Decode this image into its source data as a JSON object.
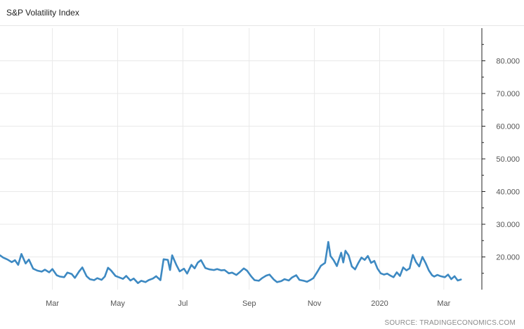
{
  "header": {
    "title": "S&P Volatility Index"
  },
  "footer": {
    "source": "SOURCE: TRADINGECONOMICS.COM"
  },
  "colors": {
    "line": "#3d89c2",
    "grid": "#e9e9e9",
    "axis": "#222222"
  },
  "chart_data": {
    "type": "line",
    "title": "S&P Volatility Index",
    "xlabel": "",
    "ylabel": "",
    "grid": true,
    "y_axis_position": "right",
    "ylim": [
      10,
      90
    ],
    "y_ticks": [
      {
        "value": 20,
        "label": "20.000"
      },
      {
        "value": 30,
        "label": "30.000"
      },
      {
        "value": 40,
        "label": "40.000"
      },
      {
        "value": 50,
        "label": "50.000"
      },
      {
        "value": 60,
        "label": "60.000"
      },
      {
        "value": 70,
        "label": "70.000"
      },
      {
        "value": 80,
        "label": "80.000"
      }
    ],
    "xlim": [
      "2019-01-11",
      "2020-03-30"
    ],
    "x_ticks": [
      {
        "date": "2019-03-01",
        "label": "Mar"
      },
      {
        "date": "2019-05-01",
        "label": "May"
      },
      {
        "date": "2019-07-01",
        "label": "Jul"
      },
      {
        "date": "2019-09-01",
        "label": "Sep"
      },
      {
        "date": "2019-11-01",
        "label": "Nov"
      },
      {
        "date": "2020-01-01",
        "label": "2020"
      },
      {
        "date": "2020-03-01",
        "label": "Mar"
      }
    ],
    "series": [
      {
        "name": "",
        "points": [
          [
            "2019-01-11",
            20.5
          ],
          [
            "2019-01-14",
            19.8
          ],
          [
            "2019-01-18",
            19.2
          ],
          [
            "2019-01-22",
            18.4
          ],
          [
            "2019-01-25",
            19.0
          ],
          [
            "2019-01-28",
            17.6
          ],
          [
            "2019-01-31",
            20.9
          ],
          [
            "2019-02-04",
            18.0
          ],
          [
            "2019-02-07",
            19.2
          ],
          [
            "2019-02-11",
            16.4
          ],
          [
            "2019-02-15",
            15.8
          ],
          [
            "2019-02-19",
            15.5
          ],
          [
            "2019-02-22",
            16.1
          ],
          [
            "2019-02-26",
            15.3
          ],
          [
            "2019-03-01",
            16.3
          ],
          [
            "2019-03-05",
            14.4
          ],
          [
            "2019-03-08",
            14.0
          ],
          [
            "2019-03-12",
            13.8
          ],
          [
            "2019-03-15",
            15.2
          ],
          [
            "2019-03-19",
            14.8
          ],
          [
            "2019-03-22",
            13.6
          ],
          [
            "2019-03-26",
            15.6
          ],
          [
            "2019-03-29",
            16.8
          ],
          [
            "2019-04-02",
            14.1
          ],
          [
            "2019-04-05",
            13.2
          ],
          [
            "2019-04-09",
            12.9
          ],
          [
            "2019-04-12",
            13.5
          ],
          [
            "2019-04-16",
            13.0
          ],
          [
            "2019-04-19",
            14.0
          ],
          [
            "2019-04-22",
            16.7
          ],
          [
            "2019-04-25",
            15.8
          ],
          [
            "2019-04-29",
            14.2
          ],
          [
            "2019-05-02",
            13.8
          ],
          [
            "2019-05-06",
            13.3
          ],
          [
            "2019-05-09",
            14.2
          ],
          [
            "2019-05-13",
            12.8
          ],
          [
            "2019-05-16",
            13.4
          ],
          [
            "2019-05-20",
            12.0
          ],
          [
            "2019-05-23",
            12.7
          ],
          [
            "2019-05-27",
            12.3
          ],
          [
            "2019-05-30",
            12.9
          ],
          [
            "2019-06-03",
            13.4
          ],
          [
            "2019-06-06",
            14.1
          ],
          [
            "2019-06-10",
            12.9
          ],
          [
            "2019-06-13",
            19.3
          ],
          [
            "2019-06-17",
            19.1
          ],
          [
            "2019-06-19",
            16.0
          ],
          [
            "2019-06-21",
            20.5
          ],
          [
            "2019-06-25",
            17.5
          ],
          [
            "2019-06-28",
            15.6
          ],
          [
            "2019-07-02",
            16.4
          ],
          [
            "2019-07-05",
            14.9
          ],
          [
            "2019-07-09",
            17.6
          ],
          [
            "2019-07-12",
            16.5
          ],
          [
            "2019-07-15",
            18.3
          ],
          [
            "2019-07-18",
            19.0
          ],
          [
            "2019-07-22",
            16.6
          ],
          [
            "2019-07-26",
            16.2
          ],
          [
            "2019-07-30",
            16.0
          ],
          [
            "2019-08-02",
            16.3
          ],
          [
            "2019-08-06",
            15.9
          ],
          [
            "2019-08-09",
            16.0
          ],
          [
            "2019-08-13",
            15.0
          ],
          [
            "2019-08-16",
            15.2
          ],
          [
            "2019-08-20",
            14.5
          ],
          [
            "2019-08-23",
            15.3
          ],
          [
            "2019-08-27",
            16.5
          ],
          [
            "2019-08-30",
            15.8
          ],
          [
            "2019-09-03",
            14.0
          ],
          [
            "2019-09-06",
            12.9
          ],
          [
            "2019-09-10",
            12.7
          ],
          [
            "2019-09-13",
            13.5
          ],
          [
            "2019-09-17",
            14.3
          ],
          [
            "2019-09-20",
            14.6
          ],
          [
            "2019-09-24",
            13.1
          ],
          [
            "2019-09-27",
            12.3
          ],
          [
            "2019-10-01",
            12.6
          ],
          [
            "2019-10-04",
            13.2
          ],
          [
            "2019-10-08",
            12.8
          ],
          [
            "2019-10-11",
            13.7
          ],
          [
            "2019-10-15",
            14.4
          ],
          [
            "2019-10-18",
            13.0
          ],
          [
            "2019-10-22",
            12.7
          ],
          [
            "2019-10-25",
            12.4
          ],
          [
            "2019-10-28",
            12.9
          ],
          [
            "2019-10-31",
            13.5
          ],
          [
            "2019-11-04",
            15.6
          ],
          [
            "2019-11-07",
            17.3
          ],
          [
            "2019-11-11",
            18.2
          ],
          [
            "2019-11-14",
            24.6
          ],
          [
            "2019-11-16",
            20.3
          ],
          [
            "2019-11-19",
            19.0
          ],
          [
            "2019-11-22",
            17.2
          ],
          [
            "2019-11-26",
            21.3
          ],
          [
            "2019-11-28",
            18.3
          ],
          [
            "2019-11-30",
            21.9
          ],
          [
            "2019-12-03",
            20.5
          ],
          [
            "2019-12-06",
            17.1
          ],
          [
            "2019-12-09",
            16.2
          ],
          [
            "2019-12-12",
            18.1
          ],
          [
            "2019-12-15",
            19.8
          ],
          [
            "2019-12-18",
            19.1
          ],
          [
            "2019-12-21",
            20.3
          ],
          [
            "2019-12-24",
            18.2
          ],
          [
            "2019-12-27",
            18.8
          ],
          [
            "2019-12-30",
            16.4
          ],
          [
            "2020-01-02",
            15.0
          ],
          [
            "2020-01-05",
            14.6
          ],
          [
            "2020-01-08",
            14.9
          ],
          [
            "2020-01-11",
            14.3
          ],
          [
            "2020-01-14",
            13.8
          ],
          [
            "2020-01-17",
            15.3
          ],
          [
            "2020-01-20",
            14.2
          ],
          [
            "2020-01-23",
            16.8
          ],
          [
            "2020-01-26",
            15.9
          ],
          [
            "2020-01-29",
            16.5
          ],
          [
            "2020-02-01",
            20.6
          ],
          [
            "2020-02-04",
            18.4
          ],
          [
            "2020-02-07",
            17.1
          ],
          [
            "2020-02-10",
            20.0
          ],
          [
            "2020-02-13",
            18.1
          ],
          [
            "2020-02-16",
            15.9
          ],
          [
            "2020-02-19",
            14.4
          ],
          [
            "2020-02-21",
            14.0
          ],
          [
            "2020-02-24",
            14.5
          ],
          [
            "2020-02-27",
            14.1
          ],
          [
            "2020-03-02",
            13.8
          ],
          [
            "2020-03-05",
            14.6
          ],
          [
            "2020-03-08",
            13.2
          ],
          [
            "2020-03-11",
            14.1
          ],
          [
            "2020-03-14",
            12.8
          ],
          [
            "2020-03-17",
            13.1
          ]
        ]
      }
    ]
  }
}
